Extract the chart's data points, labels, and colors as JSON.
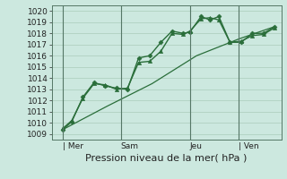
{
  "bg_color": "#cce8df",
  "grid_color": "#aaccbb",
  "line_color": "#2a6e3a",
  "ylabel": "Pression niveau de la mer( hPa )",
  "ylim": [
    1008.5,
    1020.5
  ],
  "yticks": [
    1009,
    1010,
    1011,
    1012,
    1013,
    1014,
    1015,
    1016,
    1017,
    1018,
    1019,
    1020
  ],
  "day_labels": [
    "| Mer",
    "Sam",
    "Jeu",
    "| Ven"
  ],
  "xlim": [
    -0.5,
    9.8
  ],
  "series1_x": [
    0.0,
    0.4,
    0.9,
    1.4,
    1.9,
    2.4,
    2.9,
    3.4,
    3.9,
    4.4,
    4.9,
    5.4,
    5.7,
    6.2,
    6.6,
    7.0,
    7.5,
    8.0,
    8.5,
    9.0,
    9.5
  ],
  "series1_y": [
    1009.4,
    1010.1,
    1012.3,
    1013.6,
    1013.3,
    1013.1,
    1013.0,
    1015.8,
    1016.0,
    1017.2,
    1018.2,
    1018.0,
    1018.1,
    1019.5,
    1019.2,
    1019.5,
    1017.2,
    1017.2,
    1018.0,
    1018.0,
    1018.6
  ],
  "series2_x": [
    0.0,
    0.4,
    0.9,
    1.4,
    1.9,
    2.4,
    2.9,
    3.4,
    3.9,
    4.4,
    4.9,
    5.4,
    5.7,
    6.2,
    6.6,
    7.0,
    7.5,
    8.0,
    8.5,
    9.0,
    9.5
  ],
  "series2_y": [
    1009.5,
    1010.2,
    1012.2,
    1013.5,
    1013.4,
    1013.0,
    1013.1,
    1015.4,
    1015.5,
    1016.4,
    1018.0,
    1017.9,
    1018.2,
    1019.3,
    1019.4,
    1019.2,
    1017.2,
    1017.3,
    1017.8,
    1017.9,
    1018.5
  ],
  "series3_x": [
    0.0,
    2.0,
    4.0,
    6.0,
    7.9,
    9.5
  ],
  "series3_y": [
    1009.4,
    1011.5,
    1013.5,
    1016.0,
    1017.5,
    1018.6
  ],
  "vline_positions": [
    0.0,
    2.6,
    5.7,
    7.9
  ],
  "tick_fontsize": 6.5,
  "xlabel_fontsize": 8
}
